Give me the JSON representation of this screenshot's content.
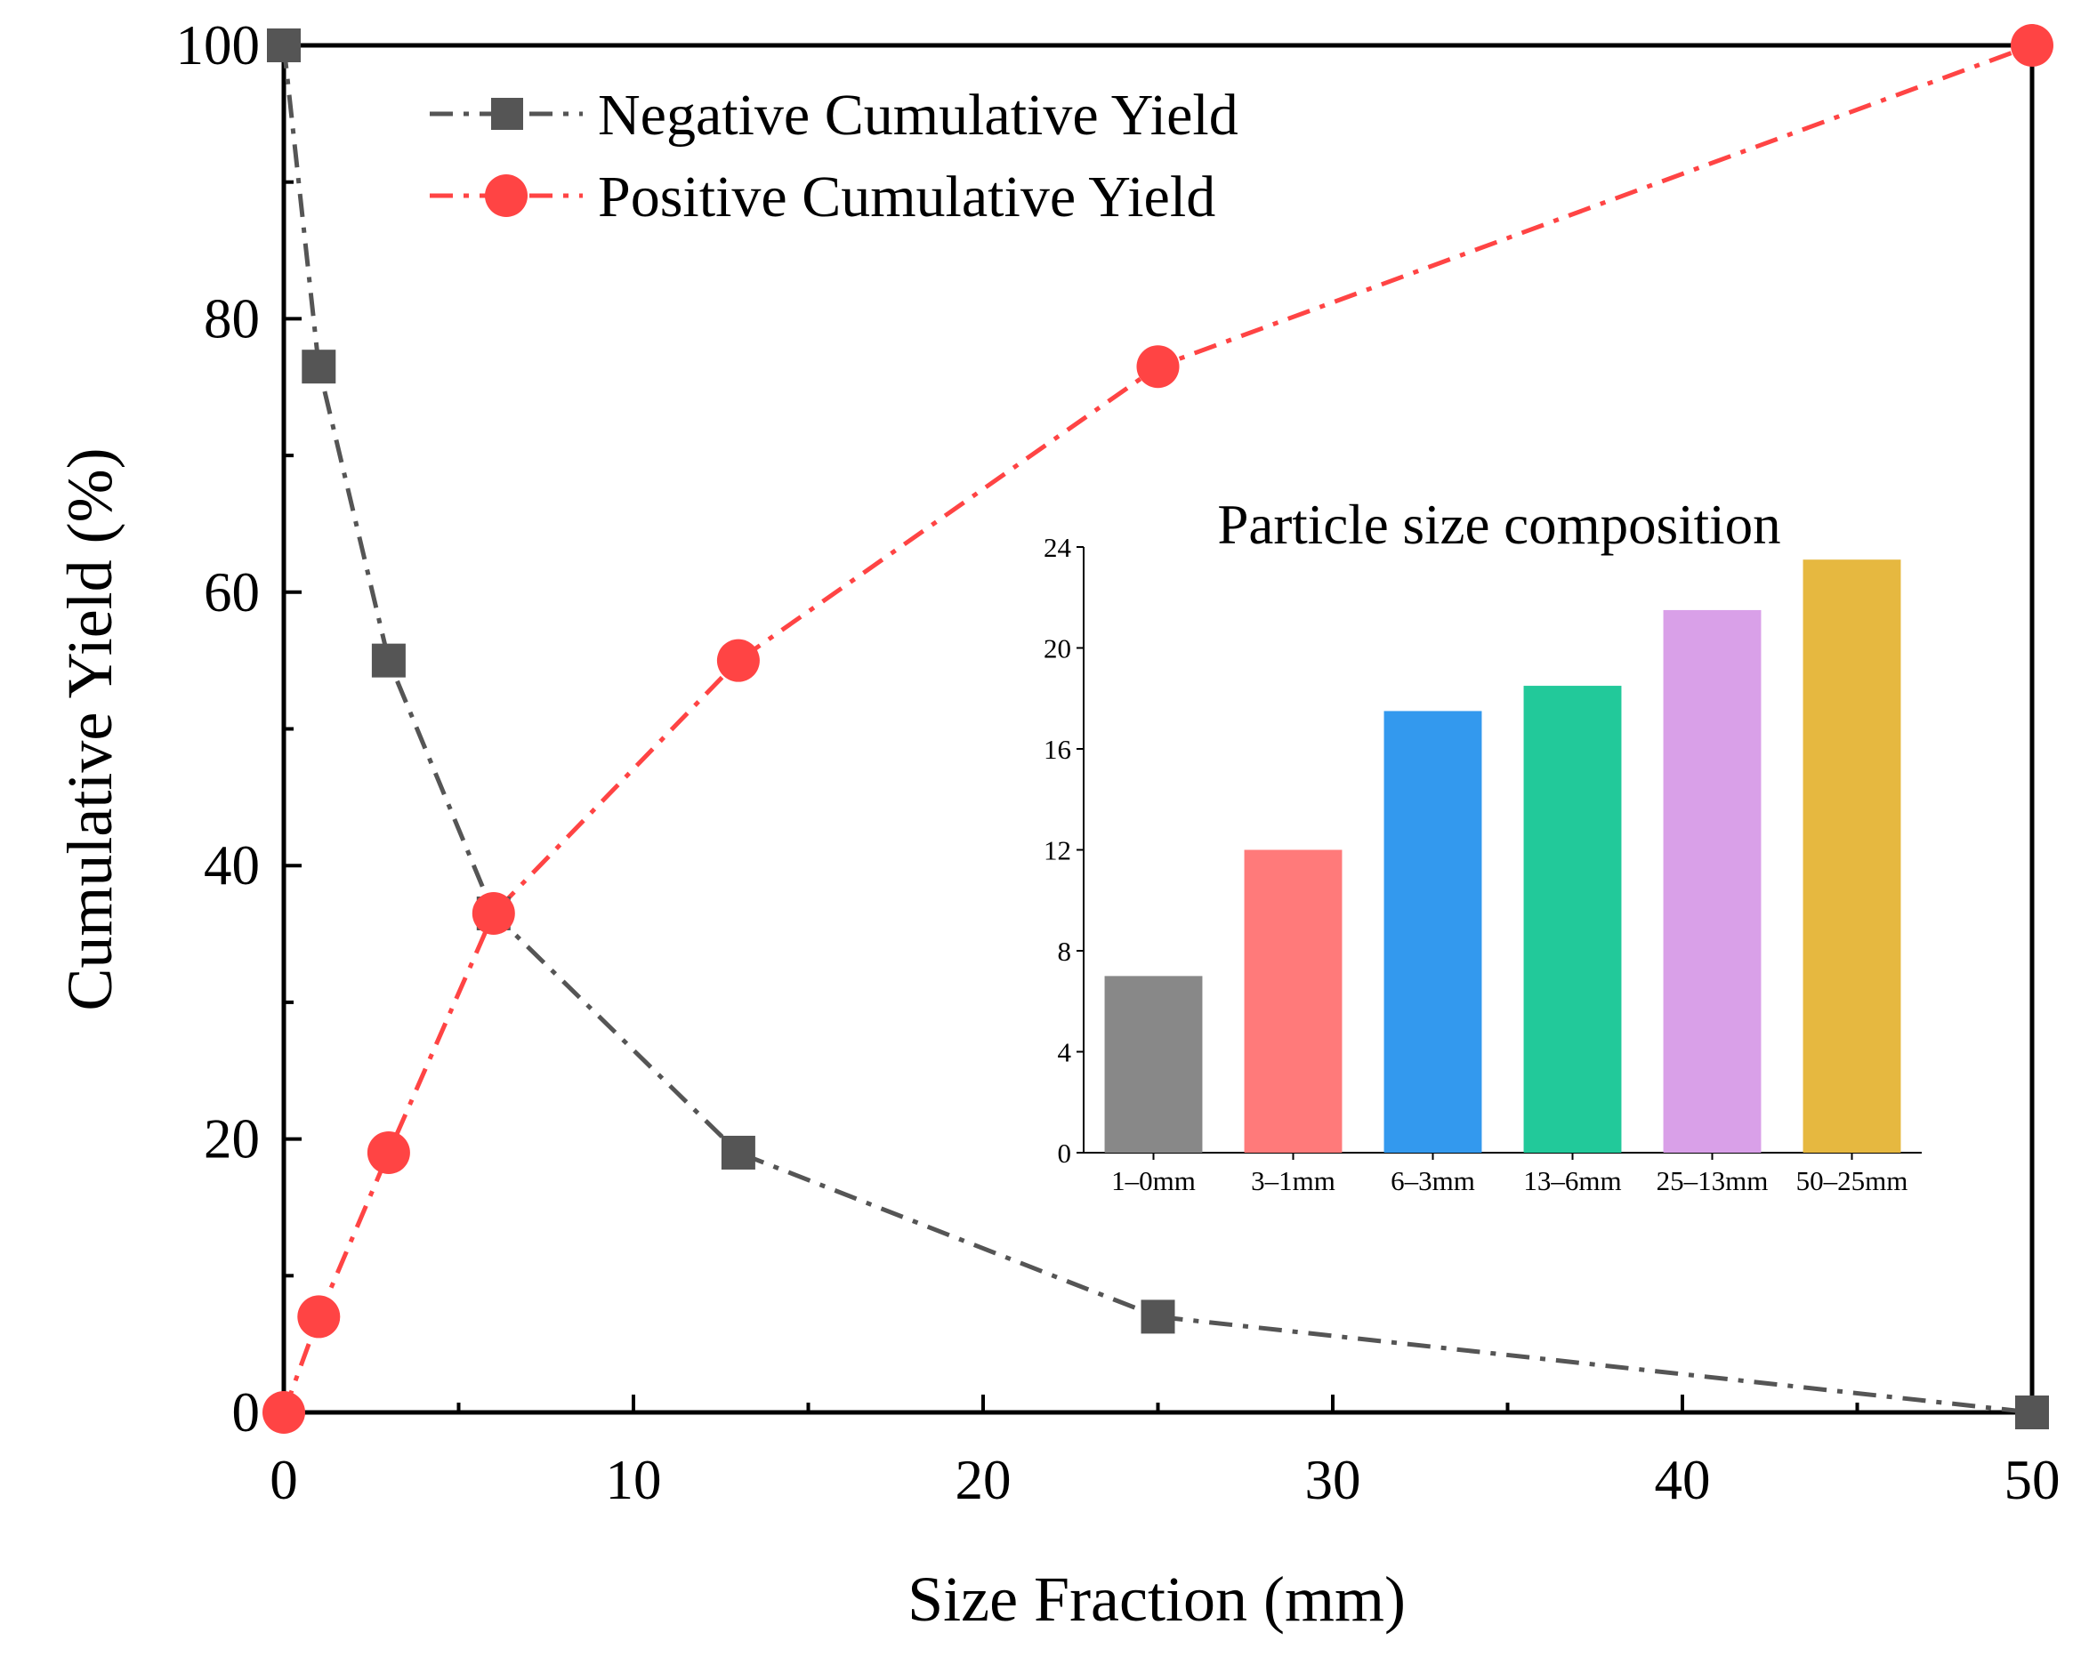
{
  "chart_data": [
    {
      "type": "line",
      "title": "",
      "xlabel": "Size Fraction (mm)",
      "ylabel": "Cumulative Yield (%)",
      "xlim": [
        0,
        50
      ],
      "ylim": [
        0,
        100
      ],
      "x_ticks": [
        0,
        10,
        20,
        30,
        40,
        50
      ],
      "y_ticks": [
        0,
        20,
        40,
        60,
        80,
        100
      ],
      "x_tick_labels": [
        "0",
        "10",
        "20",
        "30",
        "40",
        "50"
      ],
      "y_tick_labels": [
        "0",
        "20",
        "40",
        "60",
        "80",
        "100"
      ],
      "grid": false,
      "legend_position": "top-left",
      "series": [
        {
          "name": "Negative Cumulative Yield",
          "marker": "square",
          "color": "#555555",
          "line_style": "dash-dot",
          "x": [
            0,
            1,
            3,
            6,
            13,
            25,
            50
          ],
          "y": [
            100,
            76.5,
            55,
            36.5,
            19,
            7,
            0
          ]
        },
        {
          "name": "Positive Cumulative Yield",
          "marker": "circle",
          "color": "#ff4444",
          "line_style": "dash-dot",
          "x": [
            0,
            1,
            3,
            6,
            13,
            25,
            50
          ],
          "y": [
            0,
            7,
            19,
            36.5,
            55,
            76.5,
            100
          ]
        }
      ]
    },
    {
      "type": "bar",
      "title": "Particle size composition",
      "xlabel": "",
      "ylabel": "",
      "ylim": [
        0,
        24
      ],
      "y_ticks": [
        0,
        4,
        8,
        12,
        16,
        20,
        24
      ],
      "y_tick_labels": [
        "0",
        "4",
        "8",
        "12",
        "16",
        "20",
        "24"
      ],
      "categories": [
        "1–0mm",
        "3–1mm",
        "6–3mm",
        "13–6mm",
        "25–13mm",
        "50–25mm"
      ],
      "values": [
        7,
        12,
        17.5,
        18.5,
        21.5,
        23.5
      ],
      "colors": [
        "#888888",
        "#ff7a7a",
        "#3399ee",
        "#22c99a",
        "#d9a0e8",
        "#e6b840"
      ],
      "grid": false
    }
  ]
}
